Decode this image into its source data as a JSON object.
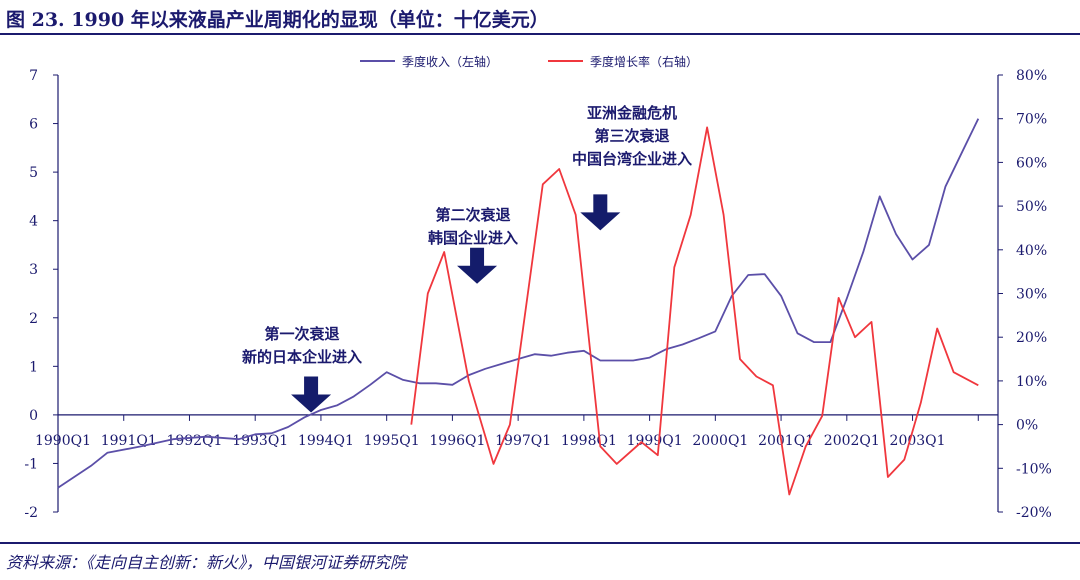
{
  "header": {
    "title": "图 23. 1990 年以来液晶产业周期化的显现（单位：十亿美元）"
  },
  "footer": {
    "source": "资料来源：《走向自主创新：新火》，中国银河证券研究院"
  },
  "colors": {
    "revenue": "#5b4fa8",
    "growth": "#f0373d",
    "text": "#1b1a6e",
    "axis": "#1b1a6e",
    "arrow": "#141c6b"
  },
  "chart_data": {
    "type": "line",
    "x_tick_labels": [
      "1990Q1",
      "1991Q1",
      "1992Q1",
      "1993Q1",
      "1994Q1",
      "1995Q1",
      "1996Q1",
      "1997Q1",
      "1998Q1",
      "1999Q1",
      "2000Q1",
      "2001Q1",
      "2002Q1",
      "2003Q1"
    ],
    "y_left": {
      "min": -2,
      "max": 7,
      "ticks": [
        "-2",
        "-1",
        "0",
        "1",
        "2",
        "3",
        "4",
        "5",
        "6",
        "7"
      ]
    },
    "y_right": {
      "min": -20,
      "max": 80,
      "ticks": [
        "-20%",
        "-10%",
        "0%",
        "10%",
        "20%",
        "30%",
        "40%",
        "50%",
        "60%",
        "70%",
        "80%"
      ]
    },
    "legend": {
      "placement": "top-center"
    },
    "series": [
      {
        "name": "季度收入（左轴）",
        "axis": "left",
        "points": [
          {
            "q": 0,
            "v": -1.5
          },
          {
            "q": 2,
            "v": -1.05
          },
          {
            "q": 3,
            "v": -0.78
          },
          {
            "q": 5,
            "v": -0.65
          },
          {
            "q": 7,
            "v": -0.5
          },
          {
            "q": 9,
            "v": -0.45
          },
          {
            "q": 11,
            "v": -0.5
          },
          {
            "q": 12,
            "v": -0.4
          },
          {
            "q": 13,
            "v": -0.38
          },
          {
            "q": 14,
            "v": -0.25
          },
          {
            "q": 15,
            "v": -0.05
          },
          {
            "q": 16,
            "v": 0.1
          },
          {
            "q": 17,
            "v": 0.2
          },
          {
            "q": 18,
            "v": 0.38
          },
          {
            "q": 19,
            "v": 0.62
          },
          {
            "q": 20,
            "v": 0.88
          },
          {
            "q": 21,
            "v": 0.72
          },
          {
            "q": 22,
            "v": 0.65
          },
          {
            "q": 23,
            "v": 0.65
          },
          {
            "q": 24,
            "v": 0.62
          },
          {
            "q": 25,
            "v": 0.82
          },
          {
            "q": 26,
            "v": 0.95
          },
          {
            "q": 27,
            "v": 1.05
          },
          {
            "q": 28,
            "v": 1.15
          },
          {
            "q": 29,
            "v": 1.25
          },
          {
            "q": 30,
            "v": 1.22
          },
          {
            "q": 31,
            "v": 1.28
          },
          {
            "q": 32,
            "v": 1.32
          },
          {
            "q": 33,
            "v": 1.12
          },
          {
            "q": 34,
            "v": 1.12
          },
          {
            "q": 35,
            "v": 1.12
          },
          {
            "q": 36,
            "v": 1.18
          },
          {
            "q": 37,
            "v": 1.35
          },
          {
            "q": 38,
            "v": 1.45
          },
          {
            "q": 39,
            "v": 1.58
          },
          {
            "q": 40,
            "v": 1.72
          },
          {
            "q": 41,
            "v": 2.45
          },
          {
            "q": 42,
            "v": 2.88
          },
          {
            "q": 43,
            "v": 2.9
          },
          {
            "q": 44,
            "v": 2.45
          },
          {
            "q": 45,
            "v": 1.68
          },
          {
            "q": 46,
            "v": 1.5
          },
          {
            "q": 47,
            "v": 1.5
          },
          {
            "q": 48,
            "v": 2.4
          },
          {
            "q": 49,
            "v": 3.35
          },
          {
            "q": 50,
            "v": 4.5
          },
          {
            "q": 51,
            "v": 3.72
          },
          {
            "q": 52,
            "v": 3.2
          },
          {
            "q": 53,
            "v": 3.5
          },
          {
            "q": 54,
            "v": 4.7
          },
          {
            "q": 55,
            "v": 5.4
          },
          {
            "q": 56,
            "v": 6.1
          }
        ]
      },
      {
        "name": "季度增长率（右轴）",
        "axis": "right",
        "points": [
          {
            "q": 21.5,
            "v": 0
          },
          {
            "q": 22.5,
            "v": 30
          },
          {
            "q": 23.5,
            "v": 39.5
          },
          {
            "q": 25,
            "v": 10
          },
          {
            "q": 26.5,
            "v": -9
          },
          {
            "q": 27.5,
            "v": 0
          },
          {
            "q": 29.5,
            "v": 55
          },
          {
            "q": 30.5,
            "v": 58.5
          },
          {
            "q": 31.5,
            "v": 48
          },
          {
            "q": 33,
            "v": -5
          },
          {
            "q": 34,
            "v": -9
          },
          {
            "q": 35.5,
            "v": -4
          },
          {
            "q": 36.5,
            "v": -7
          },
          {
            "q": 37.5,
            "v": 36
          },
          {
            "q": 38.5,
            "v": 48
          },
          {
            "q": 39.5,
            "v": 68
          },
          {
            "q": 40.5,
            "v": 48
          },
          {
            "q": 41.5,
            "v": 15
          },
          {
            "q": 42.5,
            "v": 11
          },
          {
            "q": 43.5,
            "v": 9
          },
          {
            "q": 44.5,
            "v": -16
          },
          {
            "q": 45.5,
            "v": -5
          },
          {
            "q": 46.5,
            "v": 2
          },
          {
            "q": 47.5,
            "v": 29
          },
          {
            "q": 48.5,
            "v": 20
          },
          {
            "q": 49.5,
            "v": 23.5
          },
          {
            "q": 50.5,
            "v": -12
          },
          {
            "q": 51.5,
            "v": -8
          },
          {
            "q": 52.5,
            "v": 5
          },
          {
            "q": 53.5,
            "v": 22
          },
          {
            "q": 54.5,
            "v": 12
          },
          {
            "q": 56,
            "v": 9
          }
        ]
      }
    ],
    "annotations": [
      {
        "lines": [
          "第一次衰退",
          "新的日本企业进入"
        ],
        "arrow_q": 15.4,
        "arrow_v": 0.05
      },
      {
        "lines": [
          "第二次衰退",
          "韩国企业进入"
        ],
        "arrow_q": 25.5,
        "arrow_v": 2.7
      },
      {
        "lines": [
          "亚洲金融危机",
          "第三次衰退",
          "中国台湾企业进入"
        ],
        "arrow_q": 33,
        "arrow_v": 3.8
      }
    ]
  }
}
